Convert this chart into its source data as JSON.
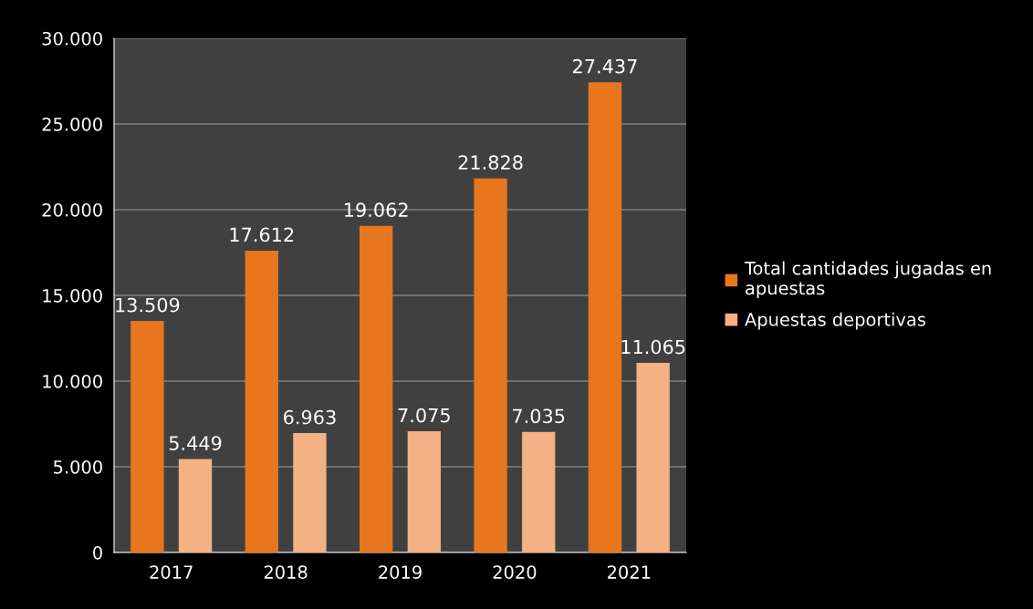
{
  "chart_data": {
    "type": "bar",
    "categories": [
      "2017",
      "2018",
      "2019",
      "2020",
      "2021"
    ],
    "series": [
      {
        "name": "Total cantidades jugadas en apuestas",
        "color": "#e8761e",
        "values": [
          13509,
          17612,
          19062,
          21828,
          27437
        ],
        "value_labels": [
          "13.509",
          "17.612",
          "19.062",
          "21.828",
          "27.437"
        ]
      },
      {
        "name": "Apuestas deportivas",
        "color": "#f4b183",
        "values": [
          5449,
          6963,
          7075,
          7035,
          11065
        ],
        "value_labels": [
          "5.449",
          "6.963",
          "7.075",
          "7.035",
          "11.065"
        ]
      }
    ],
    "ylim": [
      0,
      30000
    ],
    "yticks": [
      {
        "value": 0,
        "label": "0"
      },
      {
        "value": 5000,
        "label": "5.000"
      },
      {
        "value": 10000,
        "label": "10.000"
      },
      {
        "value": 15000,
        "label": "15.000"
      },
      {
        "value": 20000,
        "label": "20.000"
      },
      {
        "value": 25000,
        "label": "25.000"
      },
      {
        "value": 30000,
        "label": "30.000"
      }
    ],
    "grid": "y",
    "legend": "right"
  }
}
